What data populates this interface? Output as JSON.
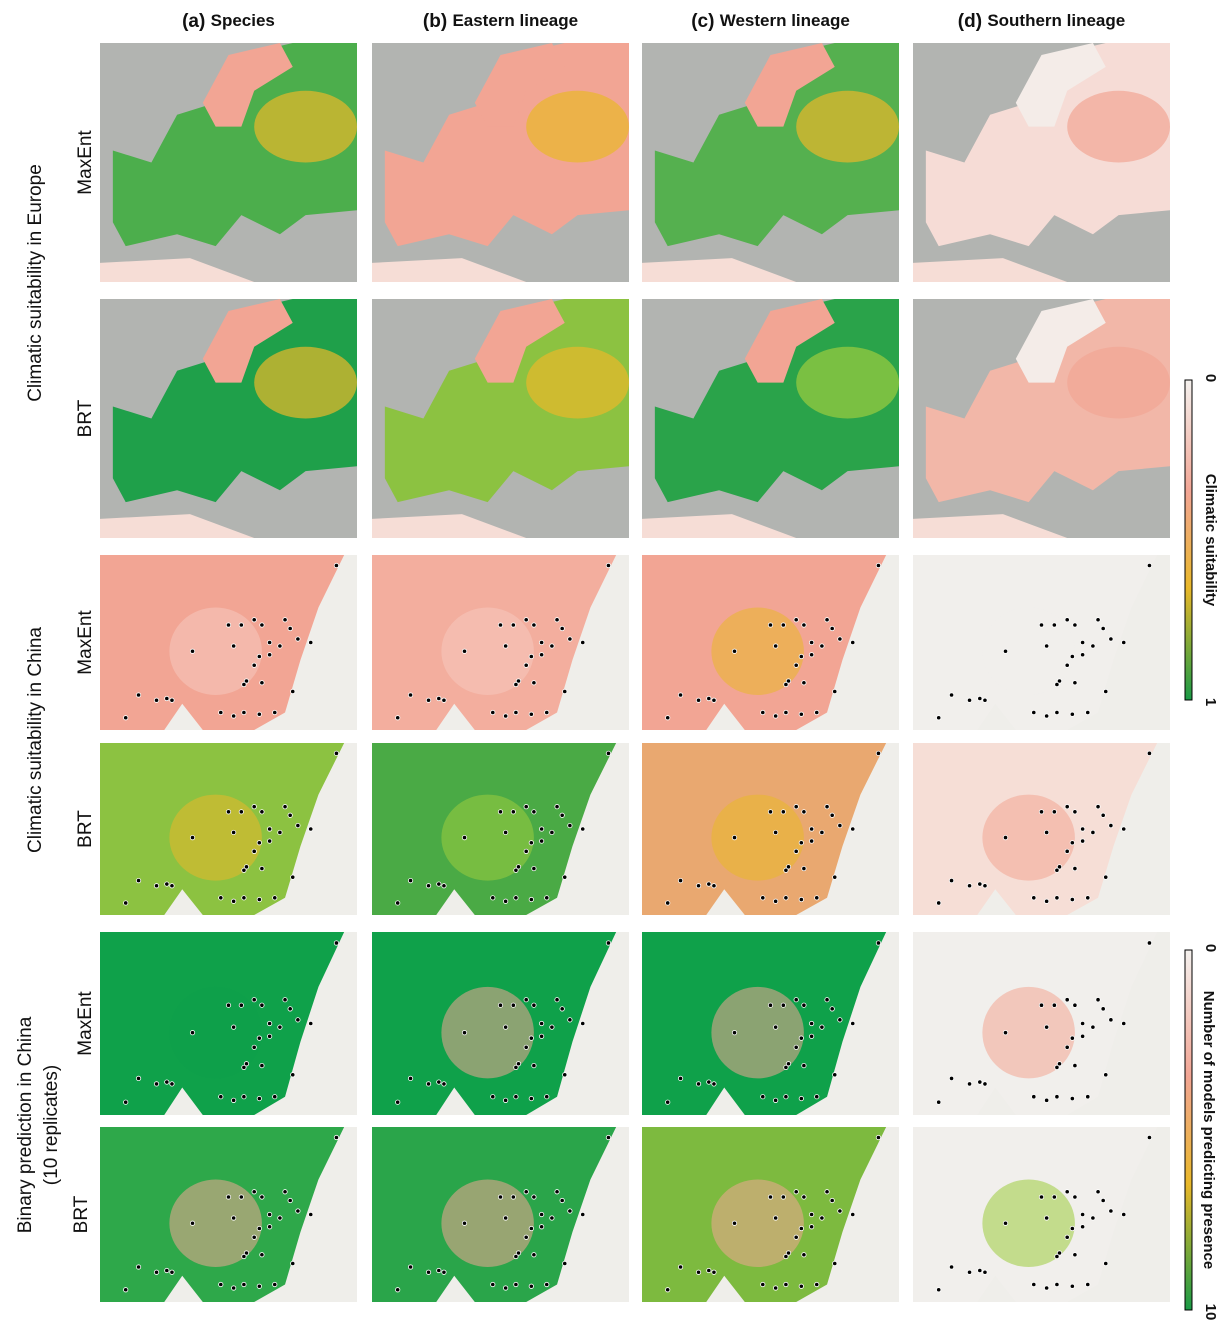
{
  "columns": [
    {
      "letter": "(a)",
      "name": "Species"
    },
    {
      "letter": "(b)",
      "name": "Eastern lineage"
    },
    {
      "letter": "(c)",
      "name": "Western lineage"
    },
    {
      "letter": "(d)",
      "name": "Southern lineage"
    }
  ],
  "row_groups": [
    {
      "label": "Climatic suitability in Europe",
      "rows": [
        "MaxEnt",
        "BRT"
      ]
    },
    {
      "label": "Climatic suitability in China",
      "rows": [
        "MaxEnt",
        "BRT"
      ]
    },
    {
      "label": "Binary prediction in China",
      "sublabel": "(10 replicates)",
      "rows": [
        "MaxEnt",
        "BRT"
      ]
    }
  ],
  "colorbars": [
    {
      "title": "Climatic suitability",
      "min": 0,
      "max": 1
    },
    {
      "title": "Number of models predicting presence",
      "min": 0,
      "max": 10
    }
  ]
}
